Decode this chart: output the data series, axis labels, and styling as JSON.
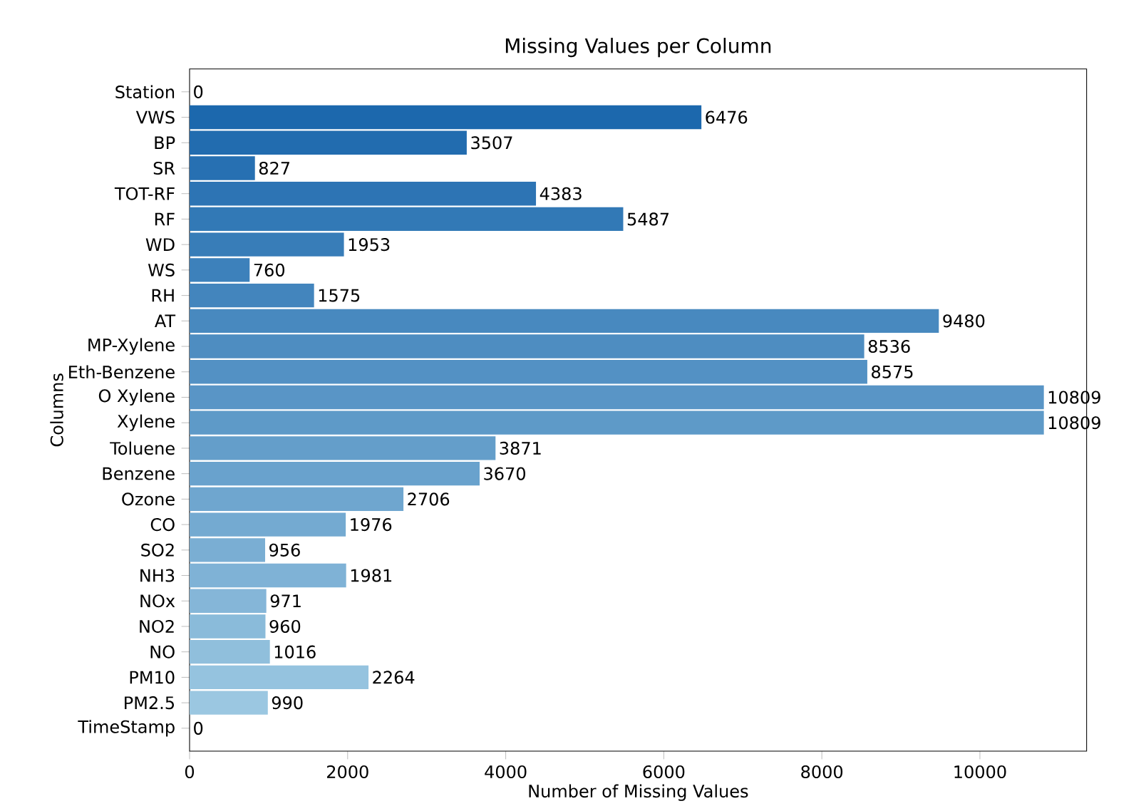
{
  "chart_data": {
    "type": "bar",
    "orientation": "horizontal",
    "title": "Missing Values per Column",
    "xlabel": "Number of Missing Values",
    "ylabel": "Columns",
    "categories": [
      "Station",
      "VWS",
      "BP",
      "SR",
      "TOT-RF",
      "RF",
      "WD",
      "WS",
      "RH",
      "AT",
      "MP-Xylene",
      "Eth-Benzene",
      "O Xylene",
      "Xylene",
      "Toluene",
      "Benzene",
      "Ozone",
      "CO",
      "SO2",
      "NH3",
      "NOx",
      "NO2",
      "NO",
      "PM10",
      "PM2.5",
      "TimeStamp"
    ],
    "values": [
      0,
      6476,
      3507,
      827,
      4383,
      5487,
      1953,
      760,
      1575,
      9480,
      8536,
      8575,
      10809,
      10809,
      3871,
      3670,
      2706,
      1976,
      956,
      1981,
      971,
      960,
      1016,
      2264,
      990,
      0
    ],
    "colors": [
      "#1764ab",
      "#1c68ad",
      "#226caf",
      "#2770b2",
      "#2d74b4",
      "#3279b6",
      "#387db8",
      "#3d81bb",
      "#4385bd",
      "#4889bf",
      "#4e8dc1",
      "#5391c4",
      "#5995c6",
      "#5e9ac8",
      "#649eca",
      "#69a2cd",
      "#6fa6cf",
      "#74aad1",
      "#7aaed3",
      "#7fb2d6",
      "#85b6d8",
      "#8abbda",
      "#90bfdc",
      "#95c3df",
      "#9bc7e1",
      "#a0cbe3"
    ],
    "xlim": [
      0,
      11350
    ],
    "xticks": [
      0,
      2000,
      4000,
      6000,
      8000,
      10000
    ],
    "data_labels": true
  }
}
